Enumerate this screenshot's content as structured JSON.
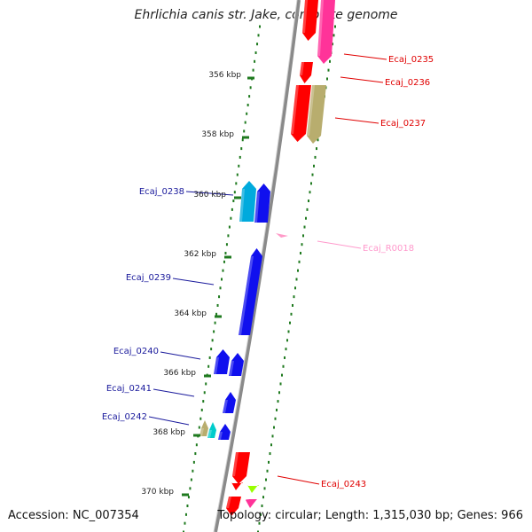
{
  "title": "Ehrlichia canis str. Jake, complete genome",
  "footer": {
    "accession": "Accession: NC_007354",
    "summary": "Topology: circular; Length: 1,315,030 bp; Genes: 966"
  },
  "colors": {
    "backbone": "#8a8a8a",
    "tick": "#1f7a1f",
    "cds": "#1010ee",
    "cds_alt": "#ff0000",
    "rna": "#ff9ac8",
    "label_forward": "#1a1a9c",
    "label_reverse": "#e00000",
    "label_rna": "#ff99cc"
  },
  "axis": {
    "ticks": [
      {
        "label": "356 kbp"
      },
      {
        "label": "358 kbp"
      },
      {
        "label": "360 kbp"
      },
      {
        "label": "362 kbp"
      },
      {
        "label": "364 kbp"
      },
      {
        "label": "366 kbp"
      },
      {
        "label": "368 kbp"
      },
      {
        "label": "370 kbp"
      }
    ]
  },
  "features": {
    "labels": [
      {
        "text": "Ecaj_0235",
        "kind": "reverse"
      },
      {
        "text": "Ecaj_0236",
        "kind": "reverse"
      },
      {
        "text": "Ecaj_0237",
        "kind": "reverse"
      },
      {
        "text": "Ecaj_0238",
        "kind": "forward"
      },
      {
        "text": "Ecaj_R0018",
        "kind": "rna"
      },
      {
        "text": "Ecaj_0239",
        "kind": "forward"
      },
      {
        "text": "Ecaj_0240",
        "kind": "forward"
      },
      {
        "text": "Ecaj_0241",
        "kind": "forward"
      },
      {
        "text": "Ecaj_0242",
        "kind": "forward"
      },
      {
        "text": "Ecaj_0243",
        "kind": "reverse"
      }
    ]
  }
}
